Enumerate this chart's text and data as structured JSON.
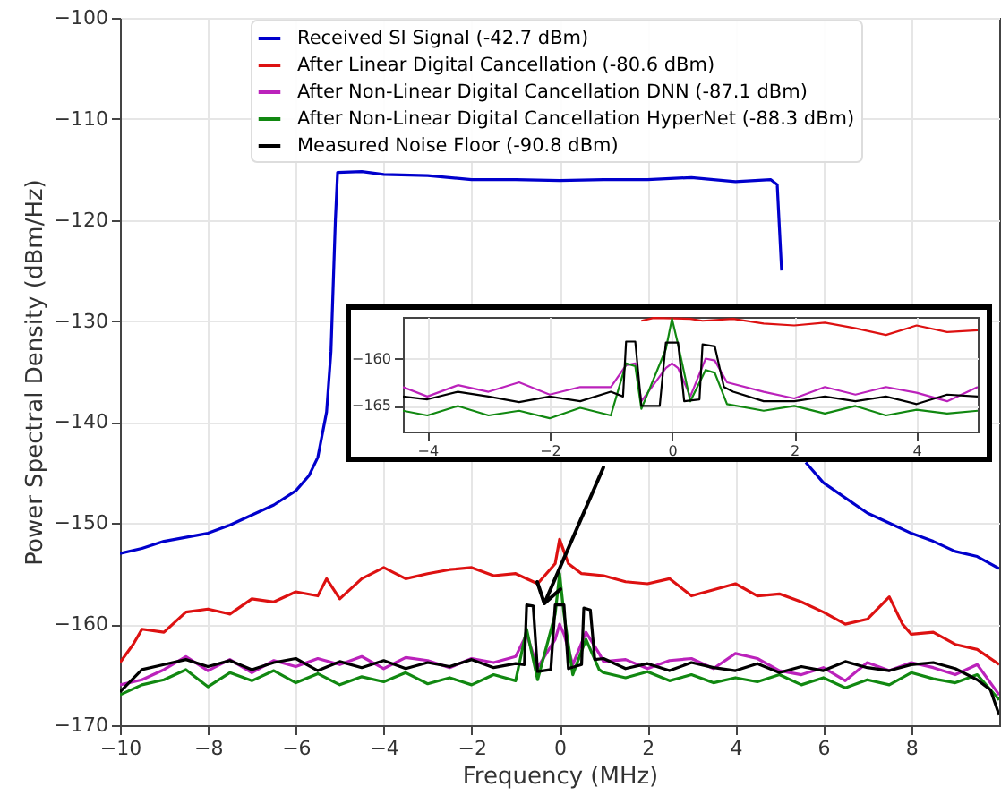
{
  "chart_data": [
    {
      "type": "line",
      "xlabel": "Frequency (MHz)",
      "ylabel": "Power Spectral Density (dBm/Hz)",
      "xlim": [
        -10,
        10
      ],
      "ylim": [
        -170,
        -100
      ],
      "xticks": [
        -10,
        -8,
        -6,
        -4,
        -2,
        0,
        2,
        4,
        6,
        8
      ],
      "yticks": [
        -170,
        -160,
        -150,
        -140,
        -130,
        -120,
        -110,
        -100
      ],
      "grid": true,
      "legend": "top",
      "series": [
        {
          "name": "Received SI Signal (-42.7 dBm)",
          "color": "#0000cc",
          "x": [
            -10,
            -9.5,
            -9,
            -8.5,
            -8,
            -7.5,
            -7,
            -6.5,
            -6,
            -5.7,
            -5.5,
            -5.3,
            -5.2,
            -5.1,
            -5.05,
            -4.5,
            -4,
            -3,
            -2,
            -1,
            0,
            1,
            2,
            3,
            4,
            4.8,
            4.95,
            5.05,
            5.15,
            5.3,
            5.6,
            6,
            6.5,
            7,
            7.5,
            8,
            8.5,
            9,
            9.5,
            10
          ],
          "values": [
            -153,
            -152.5,
            -151.8,
            -151.4,
            -151,
            -150.2,
            -149.2,
            -148.2,
            -146.8,
            -145.3,
            -143.5,
            -139,
            -133,
            -120,
            -115.3,
            -115.2,
            -115.5,
            -115.6,
            -116,
            -116,
            -116.1,
            -116,
            -116,
            -115.8,
            -116.2,
            -116,
            -116.5,
            -125,
            null,
            null,
            -144,
            -146,
            -147.5,
            -149,
            -150,
            -151,
            -151.8,
            -152.8,
            -153.3,
            -154.5
          ]
        },
        {
          "name": "After Linear Digital Cancellation (-80.6 dBm)",
          "color": "#dd1111",
          "x": [
            -10,
            -9.7,
            -9.5,
            -9,
            -8.5,
            -8,
            -7.5,
            -7,
            -6.5,
            -6,
            -5.5,
            -5.3,
            -5,
            -4.5,
            -4,
            -3.5,
            -3,
            -2.5,
            -2,
            -1.5,
            -1,
            -0.5,
            -0.1,
            0,
            0.2,
            0.5,
            1,
            1.5,
            2,
            2.5,
            3,
            3.5,
            4,
            4.5,
            5,
            5.5,
            6,
            6.5,
            7,
            7.5,
            7.8,
            8,
            8.5,
            9,
            9.5,
            10
          ],
          "values": [
            -163.8,
            -162,
            -160.5,
            -160.8,
            -158.8,
            -158.5,
            -159,
            -157.5,
            -157.8,
            -156.8,
            -157.2,
            -155.5,
            -157.5,
            -155.5,
            -154.4,
            -155.5,
            -155,
            -154.6,
            -154.4,
            -155.2,
            -155,
            -156,
            -154,
            -151.6,
            -154,
            -155,
            -155.2,
            -155.8,
            -156,
            -155.5,
            -157.2,
            -156.6,
            -156,
            -157.2,
            -157,
            -157.8,
            -158.8,
            -160,
            -159.5,
            -157.3,
            -160,
            -161,
            -160.8,
            -162,
            -162.5,
            -164
          ]
        },
        {
          "name": "After Non-Linear Digital Cancellation DNN (-87.1 dBm)",
          "color": "#bb22bb",
          "x": [
            -10,
            -9.5,
            -9,
            -8.5,
            -8,
            -7.5,
            -7,
            -6.5,
            -6,
            -5.5,
            -5,
            -4.5,
            -4,
            -3.5,
            -3,
            -2.5,
            -2,
            -1.5,
            -1,
            -0.75,
            -0.5,
            -0.1,
            0,
            0.1,
            0.3,
            0.6,
            0.9,
            1,
            1.5,
            2,
            2.5,
            3,
            3.5,
            4,
            4.5,
            5,
            5.5,
            6,
            6.5,
            7,
            7.5,
            8,
            8.5,
            9,
            9.5,
            10
          ],
          "values": [
            -166,
            -165.5,
            -164.5,
            -163.2,
            -164.6,
            -163.5,
            -164.8,
            -163.6,
            -164.2,
            -163.4,
            -164,
            -163.2,
            -164.4,
            -163.3,
            -163.6,
            -164.3,
            -163.4,
            -163.8,
            -163.2,
            -161,
            -164.3,
            -161.5,
            -160,
            -161,
            -164,
            -160.8,
            -162.9,
            -163.7,
            -163.5,
            -164.4,
            -163.6,
            -163.4,
            -164.4,
            -162.9,
            -163.4,
            -164.6,
            -165,
            -164.3,
            -165.6,
            -163.8,
            -164.6,
            -163.8,
            -164.3,
            -165,
            -164,
            -167
          ]
        },
        {
          "name": "After Non-Linear Digital Cancellation HyperNet (-88.3 dBm)",
          "color": "#118811",
          "x": [
            -10,
            -9.5,
            -9,
            -8.5,
            -8,
            -7.5,
            -7,
            -6.5,
            -6,
            -5.5,
            -5,
            -4.5,
            -4,
            -3.5,
            -3,
            -2.5,
            -2,
            -1.5,
            -1,
            -0.75,
            -0.5,
            -0.1,
            0,
            0.1,
            0.3,
            0.6,
            0.9,
            1,
            1.5,
            2,
            2.5,
            3,
            3.5,
            4,
            4.5,
            5,
            5.5,
            6,
            6.5,
            7,
            7.5,
            8,
            8.5,
            9,
            9.5,
            10
          ],
          "values": [
            -167,
            -166,
            -165.5,
            -164.5,
            -166.2,
            -164.8,
            -165.6,
            -164.6,
            -165.8,
            -164.9,
            -166,
            -165.2,
            -165.7,
            -164.8,
            -165.9,
            -165.3,
            -166,
            -165,
            -165.6,
            -160.5,
            -165.5,
            -159,
            -155,
            -159,
            -165,
            -161.5,
            -164.5,
            -164.8,
            -165.3,
            -164.7,
            -165.6,
            -165,
            -165.8,
            -165.3,
            -165.7,
            -165,
            -166,
            -165.3,
            -166.3,
            -165.5,
            -166,
            -164.8,
            -165.4,
            -165.8,
            -165,
            -167.5
          ]
        },
        {
          "name": "Measured Noise Floor (-90.8 dBm)",
          "color": "#000000",
          "x": [
            -10,
            -9.5,
            -9,
            -8.5,
            -8,
            -7.5,
            -7,
            -6.5,
            -6,
            -5.5,
            -5,
            -4.5,
            -4,
            -3.5,
            -3,
            -2.5,
            -2,
            -1.5,
            -1,
            -0.8,
            -0.75,
            -0.6,
            -0.5,
            -0.2,
            -0.1,
            0.1,
            0.2,
            0.5,
            0.55,
            0.7,
            0.8,
            1,
            1.5,
            2,
            2.5,
            3,
            3.5,
            4,
            4.5,
            5,
            5.5,
            6,
            6.5,
            7,
            7.5,
            8,
            8.5,
            9,
            9.5,
            9.8,
            10
          ],
          "values": [
            -166.7,
            -164.5,
            -164,
            -163.5,
            -164.2,
            -163.6,
            -164.5,
            -163.8,
            -163.4,
            -164.6,
            -163.7,
            -164.3,
            -163.6,
            -164.4,
            -163.8,
            -164.2,
            -163.5,
            -164.3,
            -163.9,
            -164,
            -158.1,
            -158.2,
            -164.7,
            -164.5,
            -158.1,
            -158.1,
            -164.4,
            -164,
            -158.4,
            -158.6,
            -163.5,
            -163.4,
            -164.4,
            -163.9,
            -164.6,
            -163.8,
            -164.3,
            -164.6,
            -163.9,
            -164.8,
            -164.2,
            -164.6,
            -163.7,
            -164.3,
            -164.6,
            -164,
            -163.8,
            -164.4,
            -165.5,
            -166.5,
            -169
          ]
        }
      ]
    },
    {
      "type": "line",
      "xlim": [
        -4.4,
        5
      ],
      "ylim": [
        -167.7,
        -155.6
      ],
      "xticks": [
        -4,
        -2,
        0,
        2,
        4
      ],
      "yticks": [
        -165,
        -160
      ],
      "grid": true,
      "series": [
        {
          "color": "#dd1111",
          "x": [
            -0.5,
            -0.3,
            0.3,
            0.5,
            1,
            1.5,
            2,
            2.5,
            3,
            3.5,
            4,
            4.5,
            5
          ],
          "values": [
            -156,
            -155.7,
            -155.8,
            -156,
            -155.8,
            -156.3,
            -156.5,
            -156.2,
            -156.8,
            -157.5,
            -156.5,
            -157.2,
            -157
          ]
        },
        {
          "color": "#bb22bb",
          "x": [
            -4.4,
            -4,
            -3.5,
            -3,
            -2.5,
            -2,
            -1.5,
            -1,
            -0.75,
            -0.6,
            -0.5,
            -0.1,
            0,
            0.1,
            0.3,
            0.55,
            0.7,
            0.9,
            1.5,
            2,
            2.5,
            3,
            3.5,
            4,
            4.5,
            5
          ],
          "values": [
            -163,
            -164,
            -162.8,
            -163.5,
            -162.5,
            -163.8,
            -163,
            -163,
            -160.7,
            -160.5,
            -164.5,
            -161,
            -160.5,
            -161,
            -164,
            -160,
            -160.2,
            -162.5,
            -163.5,
            -164.2,
            -163,
            -163.8,
            -163,
            -163.6,
            -164.5,
            -163
          ]
        },
        {
          "color": "#118811",
          "x": [
            -4.4,
            -4,
            -3.5,
            -3,
            -2.5,
            -2,
            -1.5,
            -1,
            -0.75,
            -0.6,
            -0.5,
            -0.1,
            0,
            0.1,
            0.3,
            0.55,
            0.7,
            0.9,
            1.5,
            2,
            2.5,
            3,
            3.5,
            4,
            4.5,
            5
          ],
          "values": [
            -165.5,
            -166,
            -165,
            -166,
            -165.5,
            -166.3,
            -165.2,
            -166,
            -160.5,
            -160.8,
            -165.3,
            -159,
            -155.8,
            -158.5,
            -164.5,
            -161.2,
            -161.5,
            -164.8,
            -165.5,
            -165,
            -165.8,
            -165,
            -166,
            -165.4,
            -165.8,
            -165.5
          ]
        },
        {
          "color": "#000000",
          "x": [
            -4.4,
            -4,
            -3.5,
            -3,
            -2.5,
            -2,
            -1.5,
            -1,
            -0.8,
            -0.75,
            -0.6,
            -0.5,
            -0.2,
            -0.1,
            0.1,
            0.2,
            0.45,
            0.5,
            0.7,
            0.85,
            1,
            1.5,
            2,
            2.5,
            3,
            3.5,
            4,
            4.5,
            5
          ],
          "values": [
            -164,
            -164.3,
            -163.5,
            -164,
            -164.6,
            -164,
            -164.5,
            -163.5,
            -164,
            -158.2,
            -158.2,
            -165,
            -165,
            -158.3,
            -158.3,
            -164.5,
            -164.3,
            -158.5,
            -158.7,
            -163,
            -163.5,
            -164.5,
            -164.5,
            -164,
            -164.5,
            -164,
            -164.8,
            -163.8,
            -164
          ]
        }
      ]
    }
  ]
}
